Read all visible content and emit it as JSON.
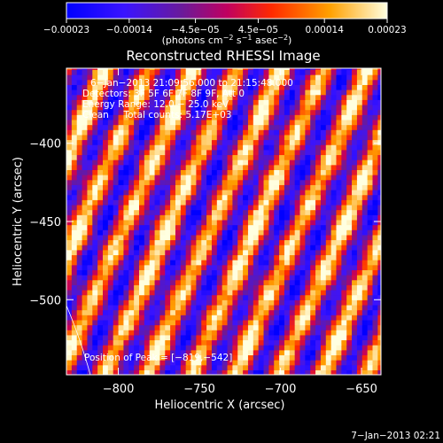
{
  "chart_data": {
    "type": "heatmap",
    "title": "Reconstructed RHESSI Image",
    "xlabel": "Heliocentric X (arcsec)",
    "ylabel": "Heliocentric Y (arcsec)",
    "xlim": [
      -832,
      -638
    ],
    "ylim": [
      -548,
      -352
    ],
    "x_ticks": [
      -800,
      -750,
      -700,
      -650
    ],
    "x_tick_labels": [
      "−800",
      "−750",
      "−700",
      "−650"
    ],
    "y_ticks": [
      -400,
      -450,
      -500
    ],
    "y_tick_labels": [
      "−400",
      "−450",
      "−500"
    ],
    "colorbar": {
      "min": -0.00023,
      "max": 0.00023,
      "ticks": [
        -0.00023,
        -0.00014,
        -4.5e-05,
        4.5e-05,
        0.00014,
        0.00023
      ],
      "tick_labels": [
        "−0.00023",
        "−0.00014",
        "−4.5e−05",
        "4.5e−05",
        "0.00014",
        "0.00023"
      ],
      "units_prefix": "(photons cm",
      "units_exp1": "−2",
      "units_mid1": " s",
      "units_exp2": "−1",
      "units_mid2": " asec",
      "units_exp3": "−2",
      "units_suffix": ")"
    },
    "stripe_model": {
      "description_values": "diagonal fringe pattern",
      "stripe_spacing_arcsec": 27,
      "stripe_slope": 0.42
    },
    "peak": [
      -819,
      -542
    ]
  },
  "annotations": {
    "time_range": "6−Jan−2013 21:09:56.000 to 21:15:48.000",
    "detectors": "Detectors: 3F 5F 6F 7F 8F 9F, Att 0",
    "energy": "Energy Range: 12.0 − 25.0 keV",
    "clean": "Clean     Total counts: 5.17E+03",
    "peak": "Position of Peak = [−819,−542]"
  },
  "footer": {
    "date": "7−Jan−2013 02:21"
  }
}
